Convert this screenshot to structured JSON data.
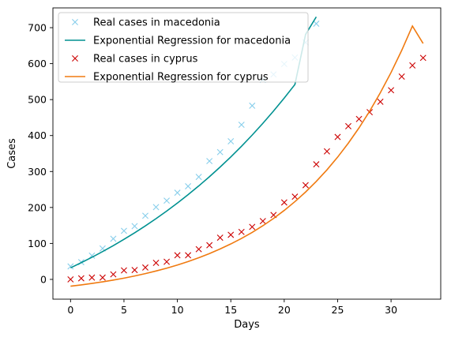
{
  "chart_data": {
    "type": "scatter",
    "title": "",
    "xlabel": "Days",
    "ylabel": "Cases",
    "xlim": [
      -1.65,
      34.65
    ],
    "ylim": [
      -55,
      755
    ],
    "xticks": [
      0,
      5,
      10,
      15,
      20,
      25,
      30
    ],
    "yticks": [
      0,
      100,
      200,
      300,
      400,
      500,
      600,
      700
    ],
    "grid": false,
    "legend_placement": "top-left",
    "series": [
      {
        "name": "Real cases in macedonia",
        "kind": "markers",
        "marker": "x",
        "color": "#87ceeb",
        "x": [
          0,
          1,
          2,
          3,
          4,
          5,
          6,
          7,
          8,
          9,
          10,
          11,
          12,
          13,
          14,
          15,
          16,
          17,
          18,
          19,
          20,
          21,
          22,
          23
        ],
        "y": [
          36,
          48,
          66,
          86,
          113,
          135,
          148,
          177,
          201,
          219,
          241,
          259,
          285,
          329,
          354,
          384,
          430,
          483,
          555,
          570,
          599,
          617,
          659,
          711
        ]
      },
      {
        "name": "Exponential Regression for macedonia",
        "kind": "line",
        "color": "#009191",
        "x": [
          0,
          1,
          2,
          3,
          4,
          5,
          6,
          7,
          8,
          9,
          10,
          11,
          12,
          13,
          14,
          15,
          16,
          17,
          18,
          19,
          20,
          21,
          22,
          23
        ],
        "y": [
          32.1,
          46.5,
          61.5,
          77.3,
          93.9,
          111.3,
          129.6,
          148.8,
          168.9,
          190.0,
          212.2,
          235.5,
          259.9,
          285.5,
          312.4,
          340.6,
          370.2,
          401.3,
          434.0,
          468.3,
          504.2,
          541.9,
          681.4,
          730.0
        ]
      },
      {
        "name": "Real cases in cyprus",
        "kind": "markers",
        "marker": "x",
        "color": "#cc0000",
        "x": [
          0,
          1,
          2,
          3,
          4,
          5,
          6,
          7,
          8,
          9,
          10,
          11,
          12,
          13,
          14,
          15,
          16,
          17,
          18,
          19,
          20,
          21,
          22,
          23,
          24,
          25,
          26,
          27,
          28,
          29,
          30,
          31,
          32,
          33
        ],
        "y": [
          0,
          3,
          5,
          5,
          14,
          25,
          26,
          33,
          46,
          49,
          67,
          67,
          84,
          95,
          116,
          124,
          132,
          146,
          162,
          179,
          214,
          230,
          262,
          320,
          356,
          396,
          426,
          446,
          465,
          494,
          526,
          564,
          595,
          616
        ]
      },
      {
        "name": "Exponential Regression for cyprus",
        "kind": "line",
        "color": "#f07a10",
        "x": [
          0,
          1,
          2,
          3,
          4,
          5,
          6,
          7,
          8,
          9,
          10,
          11,
          12,
          13,
          14,
          15,
          16,
          17,
          18,
          19,
          20,
          21,
          22,
          23,
          24,
          25,
          26,
          27,
          28,
          29,
          30,
          31,
          32,
          33
        ],
        "y": [
          -19,
          -15.3,
          -11.3,
          -6.8,
          -1.9,
          3.5,
          9.5,
          16.0,
          23.3,
          31.2,
          40.0,
          49.6,
          60.2,
          71.8,
          84.6,
          98.6,
          113.9,
          130.7,
          149.2,
          169.5,
          191.8,
          216.2,
          243.0,
          272.4,
          304.6,
          340.0,
          378.8,
          421.3,
          468.0,
          519.2,
          575.4,
          637.0,
          704.6,
          656.0
        ]
      }
    ]
  }
}
